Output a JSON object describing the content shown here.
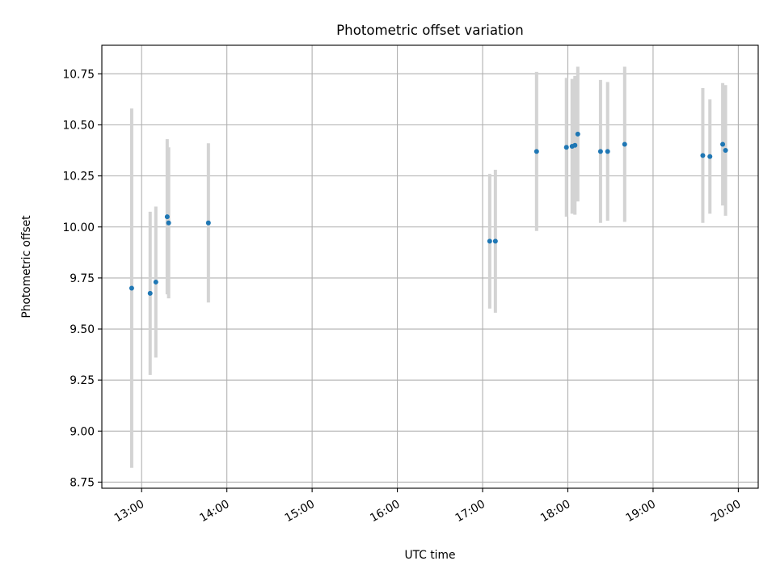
{
  "chart_data": {
    "type": "scatter",
    "title": "Photometric offset variation",
    "xlabel": "UTC time",
    "ylabel": "Photometric offset",
    "x_axis": "time",
    "xlim": [
      "12:32",
      "20:14"
    ],
    "ylim": [
      8.72,
      10.89
    ],
    "x_ticks": [
      "13:00",
      "14:00",
      "15:00",
      "16:00",
      "17:00",
      "18:00",
      "19:00",
      "20:00"
    ],
    "y_ticks": [
      "8.75",
      "9.00",
      "9.25",
      "9.50",
      "9.75",
      "10.00",
      "10.25",
      "10.50",
      "10.75"
    ],
    "grid": true,
    "legend": false,
    "colors": {
      "points": "#1f77b4",
      "error_bars": "#d3d3d3",
      "grid": "#b0b0b0"
    },
    "series": [
      {
        "points": [
          {
            "x": "12:53",
            "y": 9.7,
            "yerr": 0.88
          },
          {
            "x": "13:06",
            "y": 9.675,
            "yerr": 0.4
          },
          {
            "x": "13:10",
            "y": 9.73,
            "yerr": 0.37
          },
          {
            "x": "13:18",
            "y": 10.05,
            "yerr": 0.38
          },
          {
            "x": "13:19",
            "y": 10.02,
            "yerr": 0.37
          },
          {
            "x": "13:47",
            "y": 10.02,
            "yerr": 0.39
          },
          {
            "x": "17:05",
            "y": 9.93,
            "yerr": 0.33
          },
          {
            "x": "17:09",
            "y": 9.93,
            "yerr": 0.35
          },
          {
            "x": "17:38",
            "y": 10.37,
            "yerr": 0.39
          },
          {
            "x": "17:59",
            "y": 10.39,
            "yerr": 0.34
          },
          {
            "x": "18:03",
            "y": 10.395,
            "yerr": 0.33
          },
          {
            "x": "18:05",
            "y": 10.4,
            "yerr": 0.34
          },
          {
            "x": "18:07",
            "y": 10.455,
            "yerr": 0.33
          },
          {
            "x": "18:23",
            "y": 10.37,
            "yerr": 0.35
          },
          {
            "x": "18:28",
            "y": 10.37,
            "yerr": 0.34
          },
          {
            "x": "18:40",
            "y": 10.405,
            "yerr": 0.38
          },
          {
            "x": "19:35",
            "y": 10.35,
            "yerr": 0.33
          },
          {
            "x": "19:40",
            "y": 10.345,
            "yerr": 0.28
          },
          {
            "x": "19:49",
            "y": 10.405,
            "yerr": 0.3
          },
          {
            "x": "19:51",
            "y": 10.375,
            "yerr": 0.32
          }
        ]
      }
    ]
  }
}
